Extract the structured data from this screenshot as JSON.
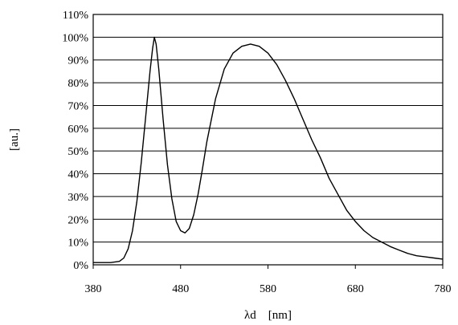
{
  "chart_data": {
    "type": "line",
    "title": "",
    "xlabel": "λd　[nm]",
    "ylabel": "[au.]",
    "xlim": [
      380,
      780
    ],
    "ylim": [
      0,
      110
    ],
    "grid": "horizontal",
    "x_ticks": [
      "380",
      "480",
      "580",
      "680",
      "780"
    ],
    "y_ticks": [
      "0%",
      "10%",
      "20%",
      "30%",
      "40%",
      "50%",
      "60%",
      "70%",
      "80%",
      "90%",
      "100%",
      "110%"
    ],
    "series": [
      {
        "x": [
          380,
          390,
          400,
          410,
          415,
          420,
          425,
          430,
          435,
          440,
          445,
          448,
          450,
          452,
          455,
          460,
          465,
          470,
          475,
          480,
          485,
          490,
          495,
          500,
          505,
          510,
          520,
          530,
          540,
          550,
          560,
          565,
          570,
          580,
          590,
          600,
          610,
          620,
          630,
          640,
          650,
          660,
          670,
          680,
          690,
          700,
          710,
          720,
          730,
          740,
          750,
          760,
          770,
          780
        ],
        "y": [
          1,
          1,
          1,
          1.5,
          3,
          7,
          15,
          28,
          45,
          65,
          85,
          95,
          100,
          97,
          86,
          64,
          44,
          29,
          19,
          15,
          14,
          16,
          22,
          31,
          42,
          54,
          73,
          86,
          93,
          96,
          97,
          96.5,
          96,
          93,
          88,
          81,
          73,
          64,
          55,
          47,
          38,
          31,
          24,
          19,
          15,
          12,
          10,
          8,
          6.5,
          5,
          4,
          3.5,
          3,
          2.5
        ]
      }
    ]
  }
}
